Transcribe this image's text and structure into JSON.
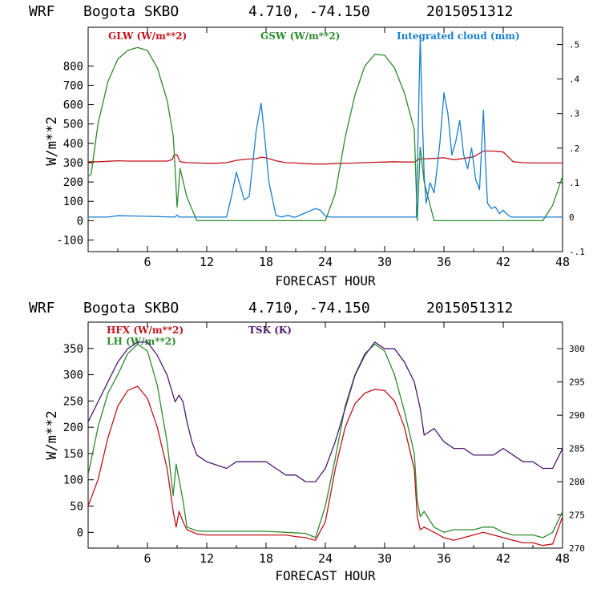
{
  "chart_data": [
    {
      "type": "line",
      "header": {
        "model": "WRF",
        "station": "Bogota SKBO",
        "coords": "4.710, -74.150",
        "run": "2015051312"
      },
      "xlabel": "FORECAST HOUR",
      "ylabel": "W/m**2",
      "xlim": [
        0,
        48
      ],
      "ylim": [
        -160,
        1000
      ],
      "xticks": [
        "6",
        "12",
        "18",
        "24",
        "30",
        "36",
        "42",
        "48"
      ],
      "yticks": [
        "800",
        "700",
        "600",
        "500",
        "400",
        "300",
        "200",
        "100",
        "0",
        "-100"
      ],
      "y2lim": [
        -0.1,
        0.55
      ],
      "y2ticks": [
        ".5",
        ".4",
        ".3",
        ".2",
        ".1",
        "0",
        "-.1"
      ],
      "grid": false,
      "series": [
        {
          "name": "GLW (W/m**2)",
          "color": "#c0141c",
          "axis": "left",
          "x": [
            0,
            1,
            2,
            3,
            4,
            5,
            6,
            7,
            8,
            8.5,
            8.7,
            9,
            9.3,
            10,
            11,
            12,
            13,
            14,
            15,
            16,
            17,
            17.5,
            18,
            19,
            20,
            21,
            22,
            23,
            24,
            25,
            26,
            27,
            28,
            29,
            30,
            31,
            32,
            33,
            33.5,
            34,
            35,
            36,
            37,
            38,
            39,
            40,
            41,
            42,
            42.5,
            43,
            44,
            45,
            46,
            47,
            48
          ],
          "y": [
            305,
            305,
            307,
            310,
            308,
            308,
            308,
            308,
            308,
            315,
            340,
            340,
            305,
            300,
            298,
            297,
            297,
            300,
            312,
            318,
            320,
            328,
            325,
            310,
            300,
            298,
            295,
            293,
            293,
            295,
            296,
            298,
            300,
            302,
            303,
            305,
            303,
            303,
            320,
            320,
            322,
            325,
            315,
            322,
            330,
            360,
            360,
            355,
            330,
            305,
            300,
            298,
            298,
            298,
            298
          ]
        },
        {
          "name": "GSW (W/m**2)",
          "color": "#2e8b2e",
          "axis": "left",
          "x": [
            0,
            0.3,
            1,
            2,
            3,
            4,
            5,
            6,
            7,
            8,
            8.6,
            8.8,
            9,
            9.3,
            10,
            11,
            12,
            24,
            25,
            26,
            27,
            28,
            29,
            30,
            31,
            32,
            33,
            33.3,
            33.6,
            34,
            35,
            36,
            42,
            44,
            46,
            47,
            48
          ],
          "y": [
            230,
            240,
            500,
            720,
            835,
            880,
            895,
            880,
            790,
            620,
            440,
            270,
            70,
            270,
            120,
            0,
            0,
            0,
            140,
            430,
            650,
            800,
            860,
            855,
            790,
            660,
            470,
            0,
            380,
            200,
            0,
            0,
            0,
            0,
            0,
            80,
            230
          ]
        },
        {
          "name": "Integrated cloud (mm)",
          "color": "#1a7fd0",
          "axis": "right",
          "x": [
            0,
            2,
            3,
            5,
            8.8,
            9.0,
            9.2,
            14,
            14.5,
            15,
            15.3,
            15.8,
            16.3,
            17,
            17.5,
            17.8,
            18.3,
            19,
            19.6,
            20,
            20.4,
            20.7,
            21,
            23,
            23.5,
            24,
            24.5,
            33.2,
            33.6,
            33.8,
            34,
            34.2,
            34.6,
            35,
            35.3,
            35.6,
            36,
            36.4,
            36.8,
            37.2,
            37.6,
            38,
            38.4,
            38.8,
            39.2,
            39.6,
            40,
            40.2,
            40.4,
            40.8,
            41.2,
            41.6,
            42,
            42.4,
            42.8,
            43.2,
            48
          ],
          "y": [
            0,
            0,
            0.004,
            0.003,
            0,
            0.006,
            0,
            0,
            0.06,
            0.13,
            0.1,
            0.05,
            0.06,
            0.25,
            0.33,
            0.25,
            0.1,
            0.005,
            0,
            0.004,
            0.004,
            0,
            0,
            0.025,
            0.02,
            0.003,
            0,
            0,
            0.52,
            0.3,
            0.12,
            0.04,
            0.1,
            0.07,
            0.14,
            0.22,
            0.36,
            0.3,
            0.18,
            0.22,
            0.28,
            0.18,
            0.14,
            0.2,
            0.11,
            0.08,
            0.31,
            0.16,
            0.04,
            0.025,
            0.03,
            0.01,
            0.02,
            0.008,
            0,
            0,
            0
          ]
        }
      ]
    },
    {
      "type": "line",
      "header": {
        "model": "WRF",
        "station": "Bogota SKBO",
        "coords": "4.710, -74.150",
        "run": "2015051312"
      },
      "xlabel": "FORECAST HOUR",
      "ylabel": "W/m**2",
      "xlim": [
        0,
        48
      ],
      "ylim": [
        -30,
        400
      ],
      "xticks": [
        "6",
        "12",
        "18",
        "24",
        "30",
        "36",
        "42",
        "48"
      ],
      "yticks": [
        "350",
        "300",
        "250",
        "200",
        "150",
        "100",
        "50",
        "0"
      ],
      "y2lim": [
        270,
        304
      ],
      "y2ticks": [
        "300",
        "295",
        "290",
        "285",
        "280",
        "275",
        "270"
      ],
      "grid": false,
      "series": [
        {
          "name": "HFX (W/m**2)",
          "color": "#c0141c",
          "axis": "left",
          "x": [
            0,
            1,
            2,
            3,
            4,
            5,
            6,
            7,
            8,
            8.6,
            8.9,
            9.2,
            9.6,
            10,
            11,
            12,
            14,
            16,
            18,
            20,
            21,
            22,
            23,
            24,
            25,
            26,
            27,
            28,
            29,
            30,
            31,
            32,
            33,
            33.3,
            33.6,
            34,
            35,
            36,
            37,
            38,
            39,
            40,
            41,
            42,
            43,
            44,
            45,
            46,
            47,
            48
          ],
          "y": [
            50,
            100,
            180,
            240,
            270,
            278,
            255,
            200,
            120,
            40,
            10,
            40,
            20,
            5,
            -3,
            -5,
            -5,
            -5,
            -5,
            -5,
            -8,
            -10,
            -15,
            20,
            120,
            200,
            245,
            265,
            272,
            270,
            250,
            200,
            120,
            30,
            5,
            10,
            0,
            -10,
            -15,
            -10,
            -5,
            0,
            -5,
            -10,
            -15,
            -20,
            -20,
            -25,
            -22,
            30
          ]
        },
        {
          "name": "LH (W/m**2)",
          "color": "#2e8b2e",
          "axis": "left",
          "x": [
            0,
            1,
            2,
            3,
            4,
            5,
            6,
            7,
            8,
            8.6,
            8.9,
            9.2,
            9.6,
            10,
            11,
            12,
            14,
            16,
            18,
            20,
            22,
            23,
            24,
            25,
            26,
            27,
            28,
            29,
            30,
            31,
            32,
            33,
            33.3,
            33.6,
            34,
            35,
            36,
            37,
            38,
            39,
            40,
            41,
            42,
            43,
            44,
            45,
            46,
            47,
            48
          ],
          "y": [
            110,
            200,
            265,
            300,
            340,
            358,
            345,
            280,
            170,
            70,
            130,
            100,
            60,
            10,
            3,
            2,
            2,
            2,
            2,
            0,
            -2,
            -10,
            50,
            140,
            240,
            300,
            340,
            358,
            345,
            300,
            230,
            150,
            60,
            30,
            40,
            10,
            0,
            5,
            5,
            5,
            10,
            10,
            0,
            -5,
            -5,
            -5,
            -10,
            0,
            40
          ]
        },
        {
          "name": "TSK (K)",
          "color": "#4b1a6e",
          "axis": "right",
          "x": [
            0,
            1,
            2,
            3,
            4,
            5,
            6,
            7,
            8,
            8.8,
            9.2,
            9.6,
            10,
            10.5,
            11,
            12,
            14,
            15,
            16,
            17,
            18,
            19,
            20,
            21,
            22,
            23,
            24,
            25,
            26,
            27,
            28,
            29,
            30,
            31,
            32,
            33,
            33.6,
            34,
            35,
            36,
            37,
            38,
            39,
            40,
            41,
            42,
            43,
            44,
            45,
            46,
            47,
            48
          ],
          "y": [
            289,
            292,
            295,
            298,
            300,
            301,
            301,
            299,
            296,
            292,
            293,
            292,
            289,
            286,
            284,
            283,
            282,
            283,
            283,
            283,
            283,
            282,
            281,
            281,
            280,
            280,
            282,
            286,
            291,
            296,
            299,
            301,
            300,
            300,
            298,
            295,
            291,
            287,
            288,
            286,
            285,
            285,
            284,
            284,
            284,
            285,
            284,
            283,
            283,
            282,
            282,
            285
          ]
        }
      ]
    }
  ]
}
